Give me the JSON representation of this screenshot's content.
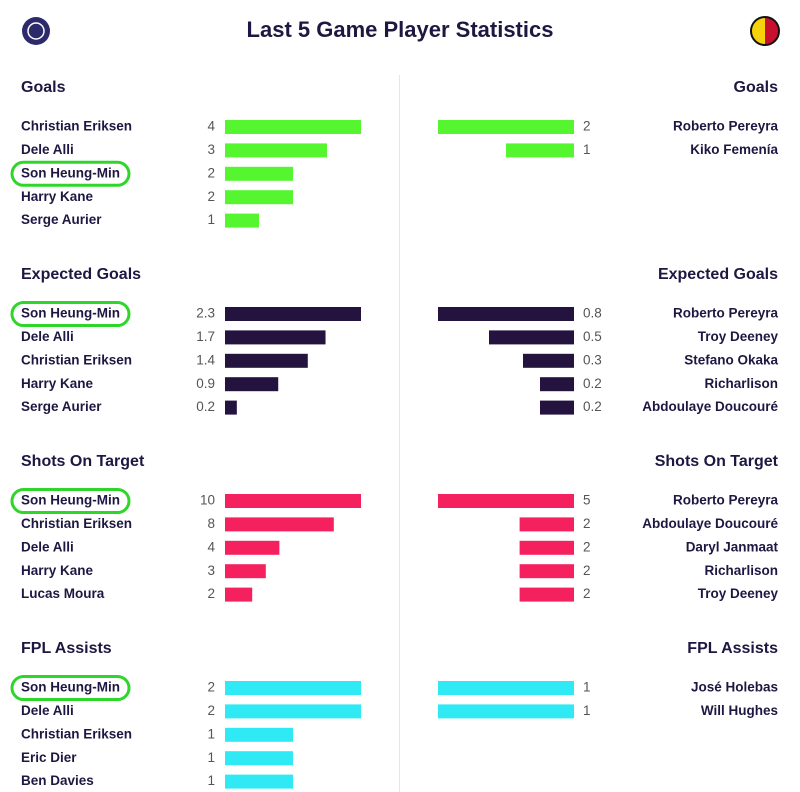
{
  "title": "Last 5 Game Player Statistics",
  "chart_data": [
    {
      "type": "bar",
      "side": "left",
      "title": "Goals",
      "color": "#55f52f",
      "xlim": [
        0,
        4
      ],
      "highlight": 2,
      "categories": [
        "Christian Eriksen",
        "Dele Alli",
        "Son Heung-Min",
        "Harry Kane",
        "Serge Aurier"
      ],
      "values": [
        4,
        3,
        2,
        2,
        1
      ]
    },
    {
      "type": "bar",
      "side": "right",
      "title": "Goals",
      "color": "#55f52f",
      "xlim": [
        0,
        2
      ],
      "categories": [
        "Roberto Pereyra",
        "Kiko Femenía"
      ],
      "values": [
        2,
        1
      ]
    },
    {
      "type": "bar",
      "side": "left",
      "title": "Expected Goals",
      "color": "#24123f",
      "xlim": [
        0,
        2.3
      ],
      "highlight": 0,
      "categories": [
        "Son Heung-Min",
        "Dele Alli",
        "Christian Eriksen",
        "Harry Kane",
        "Serge Aurier"
      ],
      "values": [
        2.3,
        1.7,
        1.4,
        0.9,
        0.2
      ]
    },
    {
      "type": "bar",
      "side": "right",
      "title": "Expected Goals",
      "color": "#24123f",
      "xlim": [
        0,
        0.8
      ],
      "categories": [
        "Roberto Pereyra",
        "Troy Deeney",
        "Stefano Okaka",
        "Richarlison",
        "Abdoulaye Doucouré"
      ],
      "values": [
        0.8,
        0.5,
        0.3,
        0.2,
        0.2
      ]
    },
    {
      "type": "bar",
      "side": "left",
      "title": "Shots On Target",
      "color": "#f5215e",
      "xlim": [
        0,
        10
      ],
      "highlight": 0,
      "categories": [
        "Son Heung-Min",
        "Christian Eriksen",
        "Dele Alli",
        "Harry Kane",
        "Lucas Moura"
      ],
      "values": [
        10,
        8,
        4,
        3,
        2
      ]
    },
    {
      "type": "bar",
      "side": "right",
      "title": "Shots On Target",
      "color": "#f5215e",
      "xlim": [
        0,
        5
      ],
      "categories": [
        "Roberto Pereyra",
        "Abdoulaye Doucouré",
        "Daryl Janmaat",
        "Richarlison",
        "Troy Deeney"
      ],
      "values": [
        5,
        2,
        2,
        2,
        2
      ]
    },
    {
      "type": "bar",
      "side": "left",
      "title": "FPL Assists",
      "color": "#2fe9f5",
      "xlim": [
        0,
        2
      ],
      "highlight": 0,
      "categories": [
        "Son Heung-Min",
        "Dele Alli",
        "Christian Eriksen",
        "Eric Dier",
        "Ben Davies"
      ],
      "values": [
        2,
        2,
        1,
        1,
        1
      ]
    },
    {
      "type": "bar",
      "side": "right",
      "title": "FPL Assists",
      "color": "#2fe9f5",
      "xlim": [
        0,
        1
      ],
      "categories": [
        "José Holebas",
        "Will Hughes"
      ],
      "values": [
        1,
        1
      ]
    }
  ]
}
